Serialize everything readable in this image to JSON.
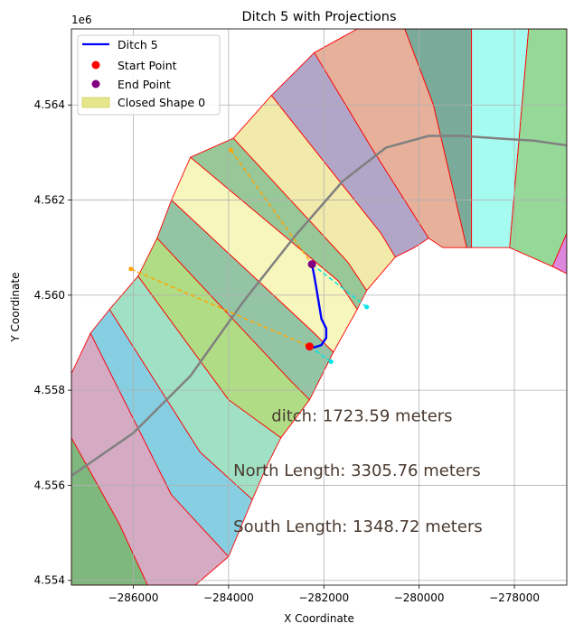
{
  "chart_data": {
    "type": "line",
    "title": "Ditch 5 with Projections",
    "xlabel": "X Coordinate",
    "ylabel": "Y Coordinate",
    "y_offset_label": "1e6",
    "xlim": [
      -287300,
      -276900
    ],
    "ylim": [
      4553900,
      4565600
    ],
    "grid": true,
    "legend_placement": "top-left",
    "x_ticks": [
      {
        "value": -286000,
        "label": "−286000"
      },
      {
        "value": -284000,
        "label": "−284000"
      },
      {
        "value": -282000,
        "label": "−282000"
      },
      {
        "value": -280000,
        "label": "−280000"
      },
      {
        "value": -278000,
        "label": "−278000"
      }
    ],
    "y_ticks": [
      {
        "value": 4554000,
        "label": "4.554"
      },
      {
        "value": 4556000,
        "label": "4.556"
      },
      {
        "value": 4558000,
        "label": "4.558"
      },
      {
        "value": 4560000,
        "label": "4.560"
      },
      {
        "value": 4562000,
        "label": "4.562"
      },
      {
        "value": 4564000,
        "label": "4.564"
      }
    ],
    "legend": [
      {
        "key": "ditch",
        "label": "Ditch 5",
        "kind": "line",
        "color": "#0000ff"
      },
      {
        "key": "start",
        "label": "Start Point",
        "kind": "marker",
        "color": "#ff0000"
      },
      {
        "key": "end",
        "label": "End Point",
        "kind": "marker",
        "color": "#800080"
      },
      {
        "key": "shape",
        "label": "Closed Shape 0",
        "kind": "patch",
        "color": "#e6e68c"
      }
    ],
    "colors": {
      "ditch": "#0000ff",
      "start": "#ff0000",
      "end": "#800080",
      "centerline": "#808080",
      "north_projection": "#ffa500",
      "south_projection": "#00e5e5",
      "outline": "#ff0000"
    },
    "annotations": [
      {
        "text": "ditch: 1723.59 meters",
        "x": -283100,
        "y": 4557350
      },
      {
        "text": "North Length: 3305.76 meters",
        "x": -283900,
        "y": 4556200
      },
      {
        "text": "South Length: 1348.72 meters",
        "x": -283900,
        "y": 4555020
      }
    ],
    "regions": [
      {
        "color": "#7fb87f",
        "points": [
          [
            -287300,
            4557000
          ],
          [
            -286300,
            4555200
          ],
          [
            -285700,
            4553900
          ],
          [
            -287300,
            4553900
          ]
        ]
      },
      {
        "color": "#d4abc3",
        "points": [
          [
            -287300,
            4558350
          ],
          [
            -287300,
            4557000
          ],
          [
            -286300,
            4555200
          ],
          [
            -285700,
            4553900
          ],
          [
            -284700,
            4553900
          ],
          [
            -284000,
            4554500
          ],
          [
            -285200,
            4555800
          ],
          [
            -286900,
            4559200
          ]
        ]
      },
      {
        "color": "#86cfe3",
        "points": [
          [
            -286900,
            4559200
          ],
          [
            -285200,
            4555800
          ],
          [
            -284000,
            4554500
          ],
          [
            -283500,
            4555700
          ],
          [
            -284600,
            4556700
          ],
          [
            -286500,
            4559700
          ]
        ]
      },
      {
        "color": "#a0e0c4",
        "points": [
          [
            -286500,
            4559700
          ],
          [
            -284600,
            4556700
          ],
          [
            -283500,
            4555700
          ],
          [
            -283200,
            4556400
          ],
          [
            -282900,
            4557000
          ],
          [
            -284000,
            4557800
          ],
          [
            -285900,
            4560400
          ]
        ]
      },
      {
        "color": "#b0dc85",
        "points": [
          [
            -285900,
            4560400
          ],
          [
            -284000,
            4557800
          ],
          [
            -282900,
            4557000
          ],
          [
            -282300,
            4557800
          ],
          [
            -282700,
            4558200
          ],
          [
            -285500,
            4561200
          ]
        ]
      },
      {
        "color": "#93c4a4",
        "points": [
          [
            -285500,
            4561200
          ],
          [
            -282700,
            4558200
          ],
          [
            -282300,
            4557800
          ],
          [
            -281800,
            4558800
          ],
          [
            -282200,
            4559200
          ],
          [
            -285200,
            4562000
          ]
        ]
      },
      {
        "color": "#f7f7bd",
        "points": [
          [
            -285200,
            4562000
          ],
          [
            -282200,
            4559200
          ],
          [
            -281800,
            4558800
          ],
          [
            -281300,
            4559700
          ],
          [
            -281700,
            4560300
          ],
          [
            -284800,
            4562900
          ]
        ]
      },
      {
        "color": "#98c798",
        "points": [
          [
            -284800,
            4562900
          ],
          [
            -281700,
            4560300
          ],
          [
            -281300,
            4559700
          ],
          [
            -281100,
            4560100
          ],
          [
            -281500,
            4560700
          ],
          [
            -283900,
            4563300
          ]
        ]
      },
      {
        "color": "#f2eaaa",
        "points": [
          [
            -283900,
            4563300
          ],
          [
            -281500,
            4560700
          ],
          [
            -281100,
            4560100
          ],
          [
            -280500,
            4560800
          ],
          [
            -280800,
            4561300
          ],
          [
            -283100,
            4564200
          ]
        ]
      },
      {
        "color": "#b1a6c8",
        "points": [
          [
            -283100,
            4564200
          ],
          [
            -280800,
            4561300
          ],
          [
            -280500,
            4560800
          ],
          [
            -280100,
            4561000
          ],
          [
            -279800,
            4561200
          ],
          [
            -281000,
            4563100
          ],
          [
            -282200,
            4565100
          ]
        ]
      },
      {
        "color": "#e6b09a",
        "points": [
          [
            -282200,
            4565100
          ],
          [
            -281000,
            4563100
          ],
          [
            -279800,
            4561200
          ],
          [
            -279500,
            4561000
          ],
          [
            -279000,
            4561000
          ],
          [
            -279700,
            4564000
          ],
          [
            -280300,
            4565600
          ],
          [
            -281300,
            4565600
          ]
        ]
      },
      {
        "color": "#7aab9a",
        "points": [
          [
            -280300,
            4565600
          ],
          [
            -279700,
            4564000
          ],
          [
            -279000,
            4561000
          ],
          [
            -278900,
            4561000
          ],
          [
            -278900,
            4565600
          ]
        ]
      },
      {
        "color": "#a6fbf0",
        "points": [
          [
            -278900,
            4565600
          ],
          [
            -278900,
            4561000
          ],
          [
            -278100,
            4561000
          ],
          [
            -277700,
            4565600
          ]
        ]
      },
      {
        "color": "#95d897",
        "points": [
          [
            -277700,
            4565600
          ],
          [
            -278100,
            4561000
          ],
          [
            -277200,
            4560600
          ],
          [
            -276900,
            4561300
          ],
          [
            -276900,
            4565600
          ]
        ]
      },
      {
        "color": "#dc86de",
        "points": [
          [
            -276900,
            4561300
          ],
          [
            -277200,
            4560600
          ],
          [
            -276900,
            4560450
          ]
        ]
      }
    ],
    "centerline": {
      "x": [
        -287300,
        -286000,
        -284800,
        -283700,
        -282600,
        -281600,
        -280700,
        -279800,
        -279100,
        -278400,
        -277600,
        -276900
      ],
      "y": [
        4556200,
        4557100,
        4558300,
        4559850,
        4561250,
        4562400,
        4563100,
        4563350,
        4563350,
        4563300,
        4563250,
        4563150
      ]
    },
    "ditch": {
      "x": [
        -282250,
        -282200,
        -282150,
        -282100,
        -282050,
        -281950,
        -281950,
        -282050,
        -282200,
        -282300
      ],
      "y": [
        4560650,
        4560400,
        4560100,
        4559800,
        4559500,
        4559300,
        4559100,
        4558950,
        4558900,
        4558950
      ]
    },
    "start_point": {
      "x": -282300,
      "y": 4558920
    },
    "end_point": {
      "x": -282250,
      "y": 4560650
    },
    "north_projections": [
      {
        "x": [
          -283950,
          -282250
        ],
        "y": [
          4563050,
          4560650
        ]
      },
      {
        "x": [
          -286050,
          -282300
        ],
        "y": [
          4560550,
          4558920
        ]
      }
    ],
    "south_projections": [
      {
        "x": [
          -282250,
          -281100
        ],
        "y": [
          4560650,
          4559750
        ]
      },
      {
        "x": [
          -282300,
          -281850
        ],
        "y": [
          4558920,
          4558600
        ]
      }
    ]
  }
}
